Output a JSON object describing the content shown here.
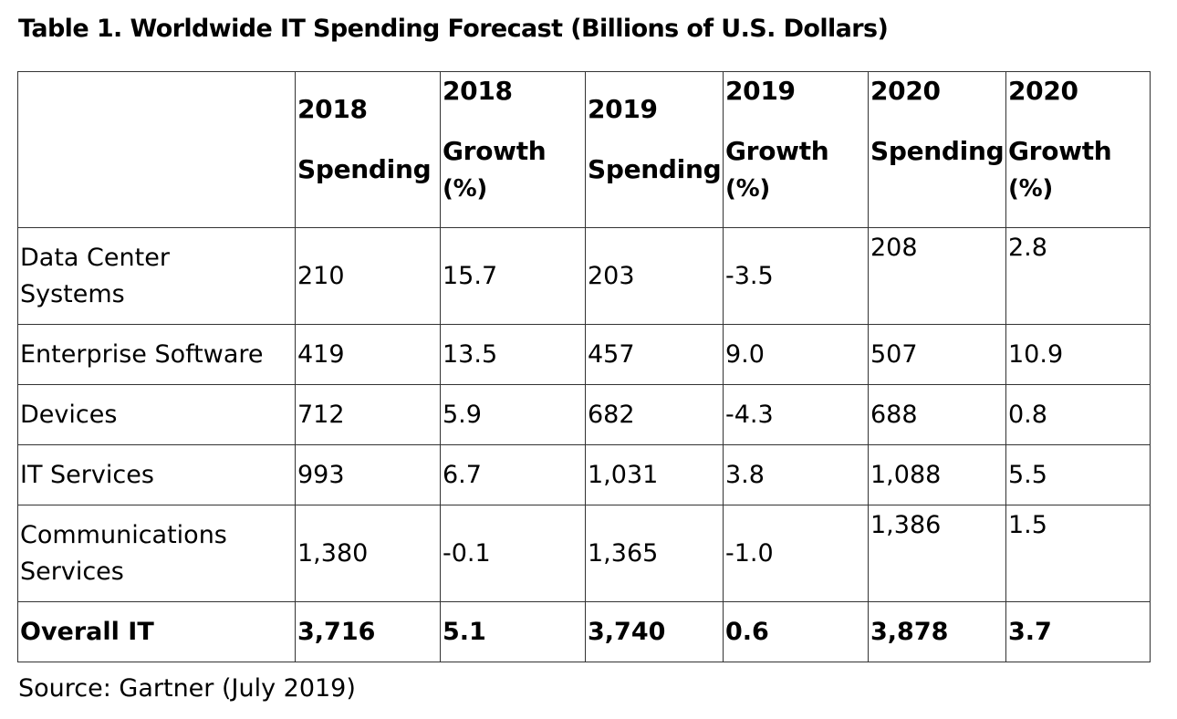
{
  "title": "Table 1. Worldwide IT Spending Forecast (Billions of U.S. Dollars)",
  "headers": {
    "c0": "",
    "c1": [
      "2018",
      "Spending"
    ],
    "c2": [
      "2018",
      "Growth",
      "(%)"
    ],
    "c3": [
      "2019",
      "Spending"
    ],
    "c4": [
      "2019",
      "Growth",
      "(%)"
    ],
    "c5": [
      "2020",
      "Spending"
    ],
    "c6": [
      "2020",
      "Growth",
      "(%)"
    ]
  },
  "rows": [
    {
      "label": [
        "Data Center",
        "Systems"
      ],
      "s2018": "210",
      "g2018": "15.7",
      "s2019": "203",
      "g2019": "-3.5",
      "s2020": "208",
      "g2020": "2.8"
    },
    {
      "label": [
        "Enterprise Software"
      ],
      "s2018": "419",
      "g2018": "13.5",
      "s2019": "457",
      "g2019": "9.0",
      "s2020": "507",
      "g2020": "10.9"
    },
    {
      "label": [
        "Devices"
      ],
      "s2018": "712",
      "g2018": "5.9",
      "s2019": "682",
      "g2019": "-4.3",
      "s2020": "688",
      "g2020": "0.8"
    },
    {
      "label": [
        "IT Services"
      ],
      "s2018": "993",
      "g2018": "6.7",
      "s2019": "1,031",
      "g2019": "3.8",
      "s2020": "1,088",
      "g2020": "5.5"
    },
    {
      "label": [
        "Communications",
        "Services"
      ],
      "s2018": "1,380",
      "g2018": "-0.1",
      "s2019": "1,365",
      "g2019": "-1.0",
      "s2020": "1,386",
      "g2020": "1.5"
    }
  ],
  "total": {
    "label": "Overall IT",
    "s2018": "3,716",
    "g2018": "5.1",
    "s2019": "3,740",
    "g2019": "0.6",
    "s2020": "3,878",
    "g2020": "3.7"
  },
  "source": "Source: Gartner (July 2019)"
}
